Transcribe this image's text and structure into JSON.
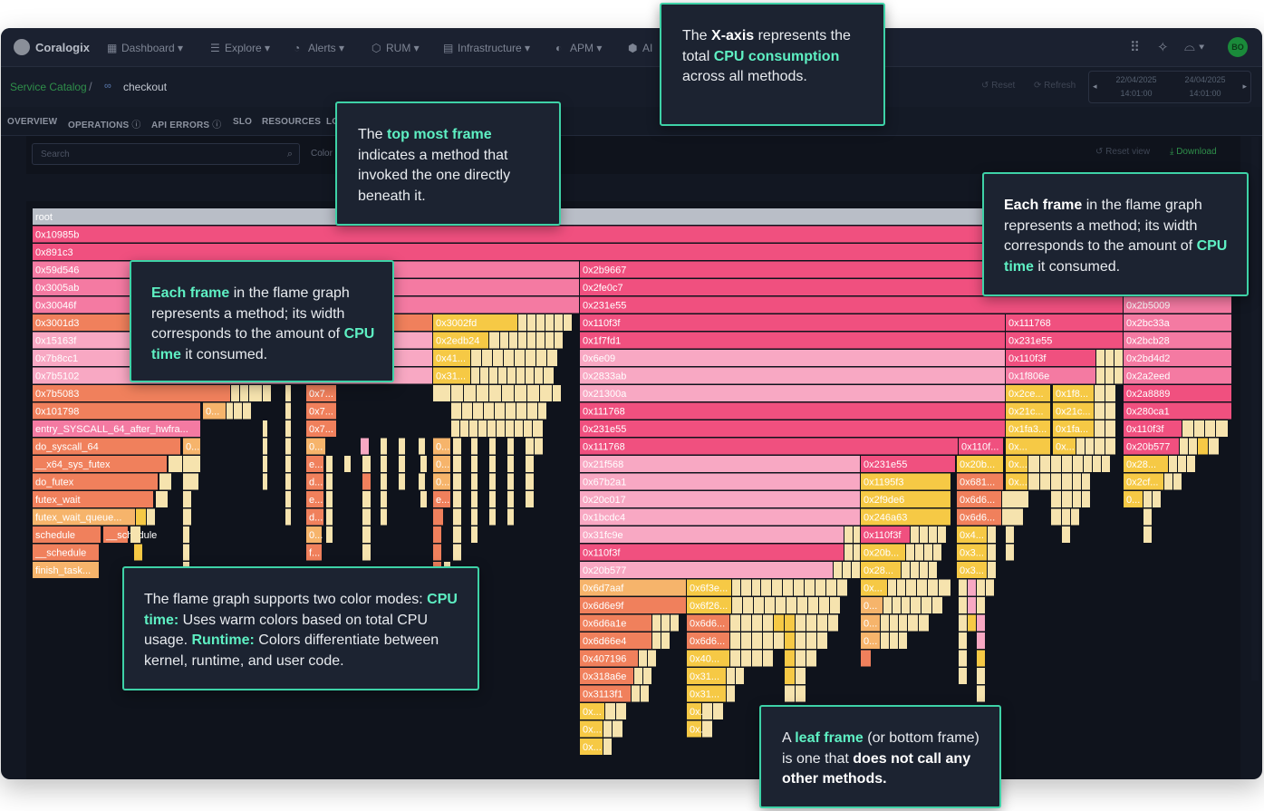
{
  "app": {
    "brand": "Coralogix",
    "nav": [
      {
        "label": "Dashboard",
        "icon": "dashboard-icon"
      },
      {
        "label": "Explore",
        "icon": "explore-icon"
      },
      {
        "label": "Alerts",
        "icon": "bell-icon"
      },
      {
        "label": "RUM",
        "icon": "rum-icon"
      },
      {
        "label": "Infrastructure",
        "icon": "infrastructure-icon"
      },
      {
        "label": "APM",
        "icon": "apm-icon"
      },
      {
        "label": "AI",
        "icon": "ai-icon"
      }
    ],
    "avatar": "BO"
  },
  "breadcrumb": {
    "catalog": "Service Catalog",
    "separator": "/",
    "current": "checkout"
  },
  "subbar": {
    "reset": "Reset",
    "refresh": "Refresh",
    "date_from": "22/04/2025",
    "time_from": "14:01:00",
    "date_to": "24/04/2025",
    "time_to": "14:01:00"
  },
  "tabs": [
    "OVERVIEW",
    "OPERATIONS",
    "API ERRORS",
    "SLO",
    "RESOURCES",
    "LO"
  ],
  "toolbar": {
    "search_placeholder": "Search",
    "color_label": "Color",
    "reset_view": "Reset view",
    "download": "Download"
  },
  "flame": {
    "colors": {
      "root": "#b9bec7",
      "hot": "#f0507f",
      "pink": "#f47aa2",
      "light": "#f8a8c3",
      "orange": "#f0805c",
      "amber": "#f6b46b",
      "yellow": "#f6c945",
      "cream": "#f6e3ae"
    },
    "frames": [
      {
        "label": "root",
        "c": "root"
      },
      {
        "label": "0x10985b",
        "c": "hot"
      },
      {
        "label": "0x891c3",
        "c": "hot"
      },
      {
        "label": "0x59d546",
        "c": "pink"
      },
      {
        "label": "0x3005ab",
        "c": "pink"
      },
      {
        "label": "0x30046f",
        "c": "pink"
      },
      {
        "label": "0x3001d3",
        "c": "orange"
      },
      {
        "label": "0x15163f",
        "c": "light"
      },
      {
        "label": "0x7b8cc1",
        "c": "light"
      },
      {
        "label": "0x7b5102",
        "c": "light"
      },
      {
        "label": "0x7b5083",
        "c": "orange"
      },
      {
        "label": "0x101798",
        "c": "orange"
      },
      {
        "label": "entry_SYSCALL_64_after_hwfra...",
        "c": "pink"
      },
      {
        "label": "do_syscall_64",
        "c": "orange"
      },
      {
        "label": "__x64_sys_futex",
        "c": "orange"
      },
      {
        "label": "do_futex",
        "c": "orange"
      },
      {
        "label": "futex_wait",
        "c": "orange"
      },
      {
        "label": "futex_wait_queue...",
        "c": "amber"
      },
      {
        "label": "schedule",
        "c": "orange"
      },
      {
        "label": "__schedule",
        "c": "orange"
      },
      {
        "label": "finish_task...",
        "c": "amber"
      },
      {
        "label": "0x3002fd",
        "c": "yellow"
      },
      {
        "label": "0x2edb24",
        "c": "yellow"
      },
      {
        "label": "0x41...",
        "c": "yellow"
      },
      {
        "label": "0x31...",
        "c": "yellow"
      },
      {
        "label": "0x7...",
        "c": "orange"
      },
      {
        "label": "0...",
        "c": "amber"
      },
      {
        "label": "e...",
        "c": "orange"
      },
      {
        "label": "d...",
        "c": "orange"
      },
      {
        "label": "f...",
        "c": "orange"
      },
      {
        "label": "0x2b9667",
        "c": "hot"
      },
      {
        "label": "0x2fe0c7",
        "c": "hot"
      },
      {
        "label": "0x231e55",
        "c": "hot"
      },
      {
        "label": "0x110f3f",
        "c": "hot"
      },
      {
        "label": "0x1f7fd1",
        "c": "hot"
      },
      {
        "label": "0x6e09",
        "c": "light"
      },
      {
        "label": "0x2833ab",
        "c": "light"
      },
      {
        "label": "0x21300a",
        "c": "light"
      },
      {
        "label": "0x111768",
        "c": "hot"
      },
      {
        "label": "0x21f568",
        "c": "light"
      },
      {
        "label": "0x67b2a1",
        "c": "light"
      },
      {
        "label": "0x20c017",
        "c": "light"
      },
      {
        "label": "0x1bcdc4",
        "c": "light"
      },
      {
        "label": "0x31fc9e",
        "c": "light"
      },
      {
        "label": "0x20b577",
        "c": "light"
      },
      {
        "label": "0x6d7aaf",
        "c": "amber"
      },
      {
        "label": "0x6d6e9f",
        "c": "orange"
      },
      {
        "label": "0x6d6a1e",
        "c": "orange"
      },
      {
        "label": "0x6d66e4",
        "c": "orange"
      },
      {
        "label": "0x407196",
        "c": "orange"
      },
      {
        "label": "0x318a6e",
        "c": "orange"
      },
      {
        "label": "0x3113f1",
        "c": "orange"
      },
      {
        "label": "0x...",
        "c": "yellow"
      },
      {
        "label": "0x6f3e...",
        "c": "yellow"
      },
      {
        "label": "0x6f26...",
        "c": "yellow"
      },
      {
        "label": "0x6d6...",
        "c": "orange"
      },
      {
        "label": "0x40...",
        "c": "yellow"
      },
      {
        "label": "0x31...",
        "c": "yellow"
      },
      {
        "label": "0x1195f3",
        "c": "yellow"
      },
      {
        "label": "0x2f9de6",
        "c": "yellow"
      },
      {
        "label": "0x246a63",
        "c": "yellow"
      },
      {
        "label": "0x20b...",
        "c": "yellow"
      },
      {
        "label": "0x28...",
        "c": "yellow"
      },
      {
        "label": "0x681...",
        "c": "orange"
      },
      {
        "label": "0x6d6...",
        "c": "orange"
      },
      {
        "label": "0x4...",
        "c": "yellow"
      },
      {
        "label": "0x3...",
        "c": "yellow"
      },
      {
        "label": "0x1f806e",
        "c": "pink"
      },
      {
        "label": "0x2ce...",
        "c": "yellow"
      },
      {
        "label": "0x1f8...",
        "c": "yellow"
      },
      {
        "label": "0x21c...",
        "c": "yellow"
      },
      {
        "label": "0x1fa3...",
        "c": "yellow"
      },
      {
        "label": "0x1fa...",
        "c": "yellow"
      },
      {
        "label": "0x110f...",
        "c": "hot"
      },
      {
        "label": "0x20b...",
        "c": "hot"
      },
      {
        "label": "0x...",
        "c": "yellow"
      },
      {
        "label": "0x2b5009",
        "c": "pink"
      },
      {
        "label": "0x2bc33a",
        "c": "pink"
      },
      {
        "label": "0x2bcb28",
        "c": "pink"
      },
      {
        "label": "0x2bd4d2",
        "c": "pink"
      },
      {
        "label": "0x2a2eed",
        "c": "pink"
      },
      {
        "label": "0x2a8889",
        "c": "hot"
      },
      {
        "label": "0x280ca1",
        "c": "hot"
      },
      {
        "label": "0x20b577",
        "c": "hot"
      },
      {
        "label": "0x28...",
        "c": "yellow"
      },
      {
        "label": "0x2cf...",
        "c": "yellow"
      },
      {
        "label": "0...",
        "c": "yellow"
      }
    ]
  },
  "callouts": {
    "xaxis": {
      "p1": "The ",
      "b1": "X-axis",
      "p2": " represents the total ",
      "h1": "CPU consumption",
      "p3": " across all methods."
    },
    "top": {
      "p1": "The ",
      "h1": "top most frame",
      "p2": " indicates a method that invoked the one directly beneath it."
    },
    "each_left": {
      "h1": "Each frame",
      "p1": " in the flame graph represents a method; its width corresponds to the amount of ",
      "h2": "CPU time",
      "p2": " it consumed."
    },
    "each_right": {
      "b1": "Each frame",
      "p1": " in the flame graph represents a method; its width corresponds to the amount of ",
      "h2": "CPU time",
      "p2": " it consumed."
    },
    "color": {
      "p1": "The flame graph supports two color modes: ",
      "h1": "CPU time:",
      "p2": " Uses warm colors based on total CPU usage. ",
      "h2": "Runtime:",
      "p3": " Colors differentiate between kernel, runtime, and user code."
    },
    "leaf": {
      "p1": "A ",
      "h1": "leaf frame",
      "p2": " (or bottom frame) is one that ",
      "b1": "does not call any other methods."
    }
  }
}
